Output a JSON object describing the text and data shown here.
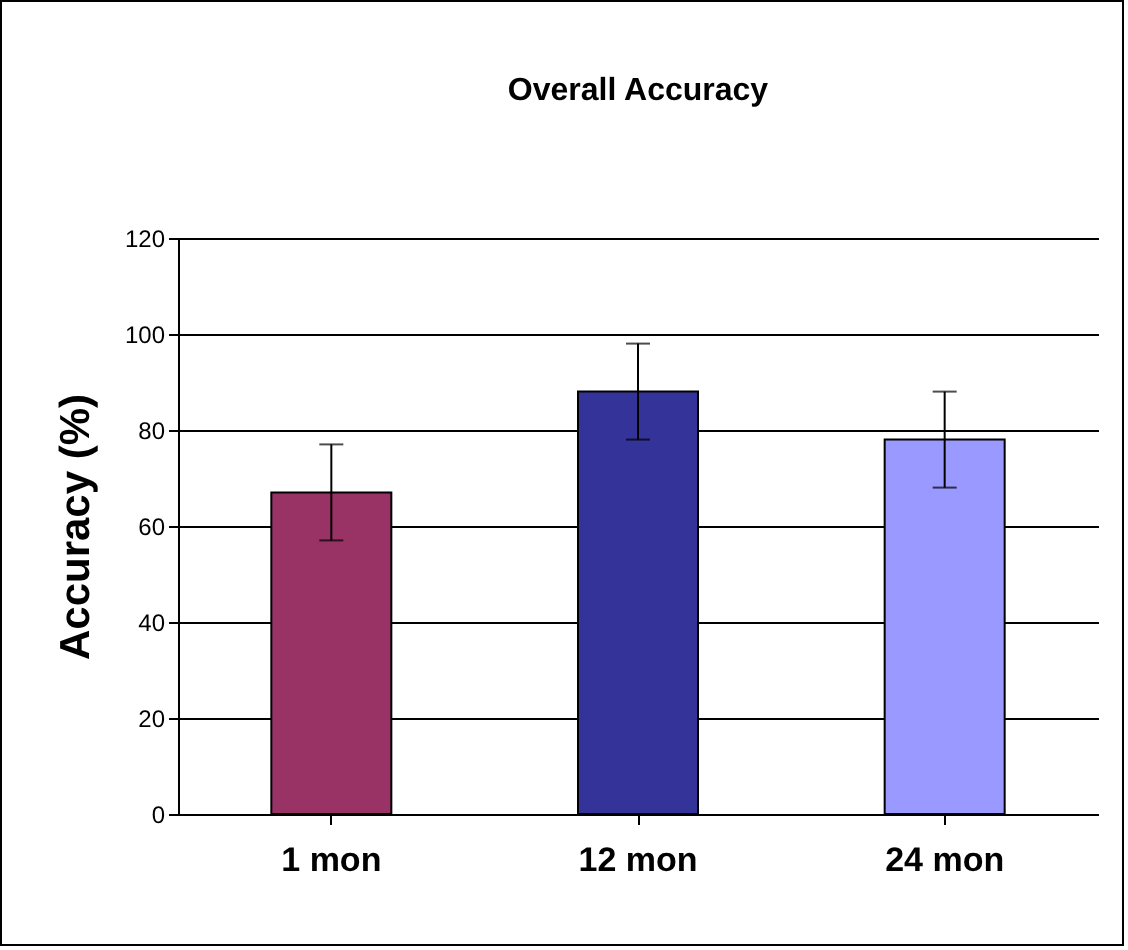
{
  "chart_data": {
    "type": "bar",
    "title": "Overall Accuracy",
    "ylabel": "Accuracy (%)",
    "categories": [
      "1 mon",
      "12 mon",
      "24 mon"
    ],
    "values": [
      67,
      88,
      78
    ],
    "colors": [
      "#993366",
      "#333399",
      "#9999ff"
    ],
    "errors": [
      10,
      10,
      10
    ],
    "ylim": [
      0,
      120
    ],
    "yticks": [
      0,
      20,
      40,
      60,
      80,
      100,
      120
    ],
    "grid": "y",
    "legend": false
  }
}
